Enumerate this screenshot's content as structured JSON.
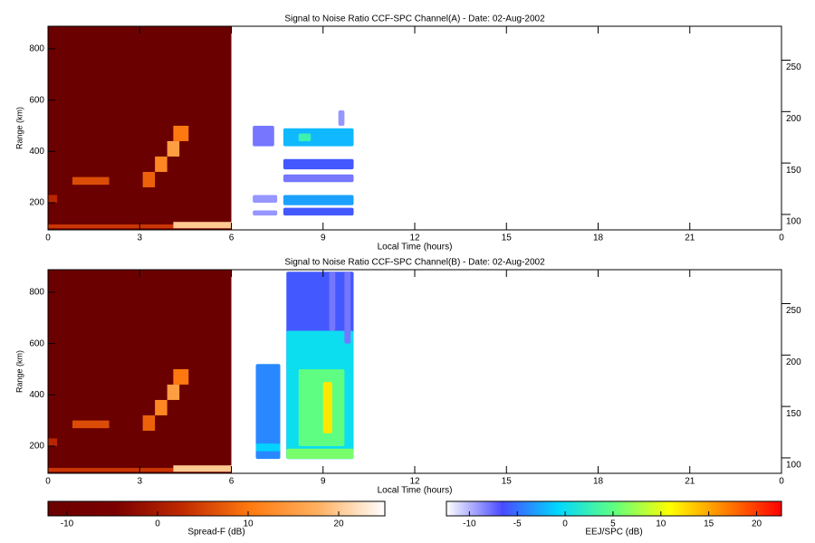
{
  "chart_data": [
    {
      "type": "heatmap",
      "title": "Signal to Noise Ratio CCF-SPC Channel(A) - Date: 02-Aug-2002",
      "xlabel": "Local Time (hours)",
      "ylabel": "Range (km)",
      "xlim": [
        0,
        24
      ],
      "xticks": [
        0,
        3,
        6,
        9,
        12,
        15,
        18,
        21,
        {
          "value": 24,
          "label": "0"
        }
      ],
      "ylim": [
        94,
        888
      ],
      "yticks": [
        200,
        400,
        600,
        800
      ],
      "y2lim": [
        85,
        283
      ],
      "y2ticks": [
        100,
        150,
        200,
        250
      ],
      "spread_f_cells": [
        {
          "x": [
            0,
            6
          ],
          "y": [
            94,
            888
          ],
          "value": -12
        },
        {
          "x": [
            0,
            4.1
          ],
          "y": [
            100,
            115
          ],
          "value": 4
        },
        {
          "x": [
            4.1,
            6
          ],
          "y": [
            100,
            125
          ],
          "value": 20
        },
        {
          "x": [
            0.8,
            2.0
          ],
          "y": [
            270,
            300
          ],
          "value": 6
        },
        {
          "x": [
            0,
            0.3
          ],
          "y": [
            200,
            230
          ],
          "value": 2
        },
        {
          "x": [
            3.1,
            3.5
          ],
          "y": [
            260,
            320
          ],
          "value": 8
        },
        {
          "x": [
            3.5,
            3.9
          ],
          "y": [
            320,
            380
          ],
          "value": 12
        },
        {
          "x": [
            3.9,
            4.3
          ],
          "y": [
            380,
            440
          ],
          "value": 15
        },
        {
          "x": [
            4.1,
            4.6
          ],
          "y": [
            440,
            500
          ],
          "value": 10
        }
      ],
      "eej_cells": [
        {
          "x": [
            6.7,
            7.4
          ],
          "y": [
            420,
            500
          ],
          "value": -8
        },
        {
          "x": [
            7.7,
            10
          ],
          "y": [
            420,
            490
          ],
          "value": -2
        },
        {
          "x": [
            8.2,
            8.6
          ],
          "y": [
            440,
            470
          ],
          "value": 3
        },
        {
          "x": [
            7.7,
            10
          ],
          "y": [
            330,
            370
          ],
          "value": -6
        },
        {
          "x": [
            7.7,
            10
          ],
          "y": [
            280,
            310
          ],
          "value": -8
        },
        {
          "x": [
            7.7,
            10
          ],
          "y": [
            190,
            230
          ],
          "value": -3
        },
        {
          "x": [
            6.7,
            7.5
          ],
          "y": [
            200,
            230
          ],
          "value": -9
        },
        {
          "x": [
            7.7,
            10
          ],
          "y": [
            150,
            180
          ],
          "value": -6
        },
        {
          "x": [
            6.7,
            7.5
          ],
          "y": [
            150,
            170
          ],
          "value": -9
        },
        {
          "x": [
            9.5,
            9.7
          ],
          "y": [
            500,
            560
          ],
          "value": -9
        }
      ]
    },
    {
      "type": "heatmap",
      "title": "Signal to Noise Ratio CCF-SPC Channel(B) - Date: 02-Aug-2002",
      "xlabel": "Local Time (hours)",
      "ylabel": "Range (km)",
      "xlim": [
        0,
        24
      ],
      "xticks": [
        0,
        3,
        6,
        9,
        12,
        15,
        18,
        21,
        {
          "value": 24,
          "label": "0"
        }
      ],
      "ylim": [
        94,
        888
      ],
      "yticks": [
        200,
        400,
        600,
        800
      ],
      "y2lim": [
        85,
        283
      ],
      "y2ticks": [
        100,
        150,
        200,
        250
      ],
      "spread_f_cells": [
        {
          "x": [
            0,
            6
          ],
          "y": [
            94,
            888
          ],
          "value": -12
        },
        {
          "x": [
            0,
            4.1
          ],
          "y": [
            100,
            115
          ],
          "value": 4
        },
        {
          "x": [
            4.1,
            6
          ],
          "y": [
            100,
            125
          ],
          "value": 20
        },
        {
          "x": [
            0.8,
            2.0
          ],
          "y": [
            270,
            300
          ],
          "value": 6
        },
        {
          "x": [
            0,
            0.3
          ],
          "y": [
            200,
            230
          ],
          "value": 2
        },
        {
          "x": [
            3.1,
            3.5
          ],
          "y": [
            260,
            320
          ],
          "value": 8
        },
        {
          "x": [
            3.5,
            3.9
          ],
          "y": [
            320,
            380
          ],
          "value": 12
        },
        {
          "x": [
            3.9,
            4.3
          ],
          "y": [
            380,
            440
          ],
          "value": 15
        },
        {
          "x": [
            4.1,
            4.6
          ],
          "y": [
            440,
            500
          ],
          "value": 10
        }
      ],
      "eej_cells": [
        {
          "x": [
            6.8,
            7.6
          ],
          "y": [
            150,
            520
          ],
          "value": -4
        },
        {
          "x": [
            7.8,
            10
          ],
          "y": [
            150,
            880
          ],
          "value": -6
        },
        {
          "x": [
            7.8,
            10
          ],
          "y": [
            150,
            650
          ],
          "value": 0
        },
        {
          "x": [
            8.2,
            9.7
          ],
          "y": [
            200,
            500
          ],
          "value": 5
        },
        {
          "x": [
            9,
            9.3
          ],
          "y": [
            250,
            450
          ],
          "value": 12
        },
        {
          "x": [
            7.8,
            10
          ],
          "y": [
            150,
            190
          ],
          "value": 6
        },
        {
          "x": [
            6.8,
            7.6
          ],
          "y": [
            180,
            210
          ],
          "value": -1
        },
        {
          "x": [
            9.2,
            9.4
          ],
          "y": [
            650,
            880
          ],
          "value": -8
        },
        {
          "x": [
            9.7,
            9.9
          ],
          "y": [
            600,
            880
          ],
          "value": -8
        }
      ]
    }
  ],
  "colorbars": {
    "spread_f": {
      "label": "Spread-F (dB)",
      "lim": [
        -12.1,
        25.1
      ],
      "ticks": [
        -10,
        0,
        10,
        20
      ],
      "colors": [
        "#6b0000",
        "#7a0000",
        "#c02a00",
        "#ff7a10",
        "#ffb060",
        "#ffffff"
      ]
    },
    "eej": {
      "label": "EEJ/SPC (dB)",
      "lim": [
        -12.4,
        22.6
      ],
      "ticks": [
        -10,
        -5,
        0,
        5,
        10,
        15,
        20
      ],
      "colors": [
        "#ffffff",
        "#4a4aff",
        "#00d8ff",
        "#60ff80",
        "#ffff00",
        "#ff8000",
        "#ff0000"
      ]
    }
  }
}
